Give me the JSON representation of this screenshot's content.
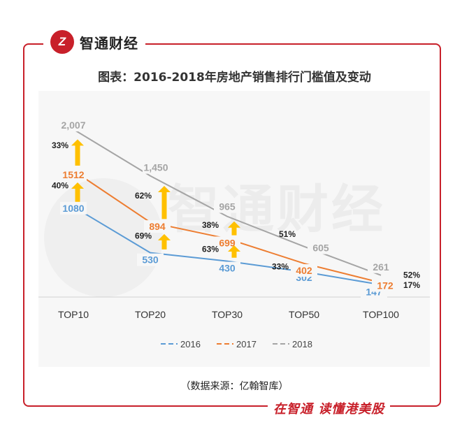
{
  "brand": {
    "logo_text": "Z",
    "name": "智通财经"
  },
  "slogan": "在智通  读懂港美股",
  "watermark": "智通财经",
  "chart_data": {
    "type": "line",
    "title": "图表：2016-2018年房地产销售排行门槛值及变动",
    "source": "（数据来源：亿翰智库）",
    "categories": [
      "TOP10",
      "TOP20",
      "TOP30",
      "TOP50",
      "TOP100"
    ],
    "series": [
      {
        "name": "2016",
        "values": [
          1080,
          530,
          430,
          302,
          147
        ],
        "labels": [
          "1080",
          "530",
          "430",
          "302",
          "147"
        ],
        "color": "#5b9bd5"
      },
      {
        "name": "2017",
        "values": [
          1512,
          894,
          699,
          402,
          172
        ],
        "labels": [
          "1512",
          "894",
          "699",
          "402",
          "172"
        ],
        "color": "#ed7d31"
      },
      {
        "name": "2018",
        "values": [
          2007,
          1450,
          965,
          605,
          261
        ],
        "labels": [
          "2,007",
          "1,450",
          "965",
          "605",
          "261"
        ],
        "color": "#a5a5a5"
      }
    ],
    "growth_2017_vs_2016": [
      "40%",
      "69%",
      "63%",
      "33%",
      "17%"
    ],
    "growth_2018_vs_2017": [
      "33%",
      "62%",
      "38%",
      "51%",
      "52%"
    ],
    "ylim": [
      0,
      2300
    ],
    "legend": [
      "2016",
      "2017",
      "2018"
    ],
    "arrow_color": "#ffc000"
  }
}
